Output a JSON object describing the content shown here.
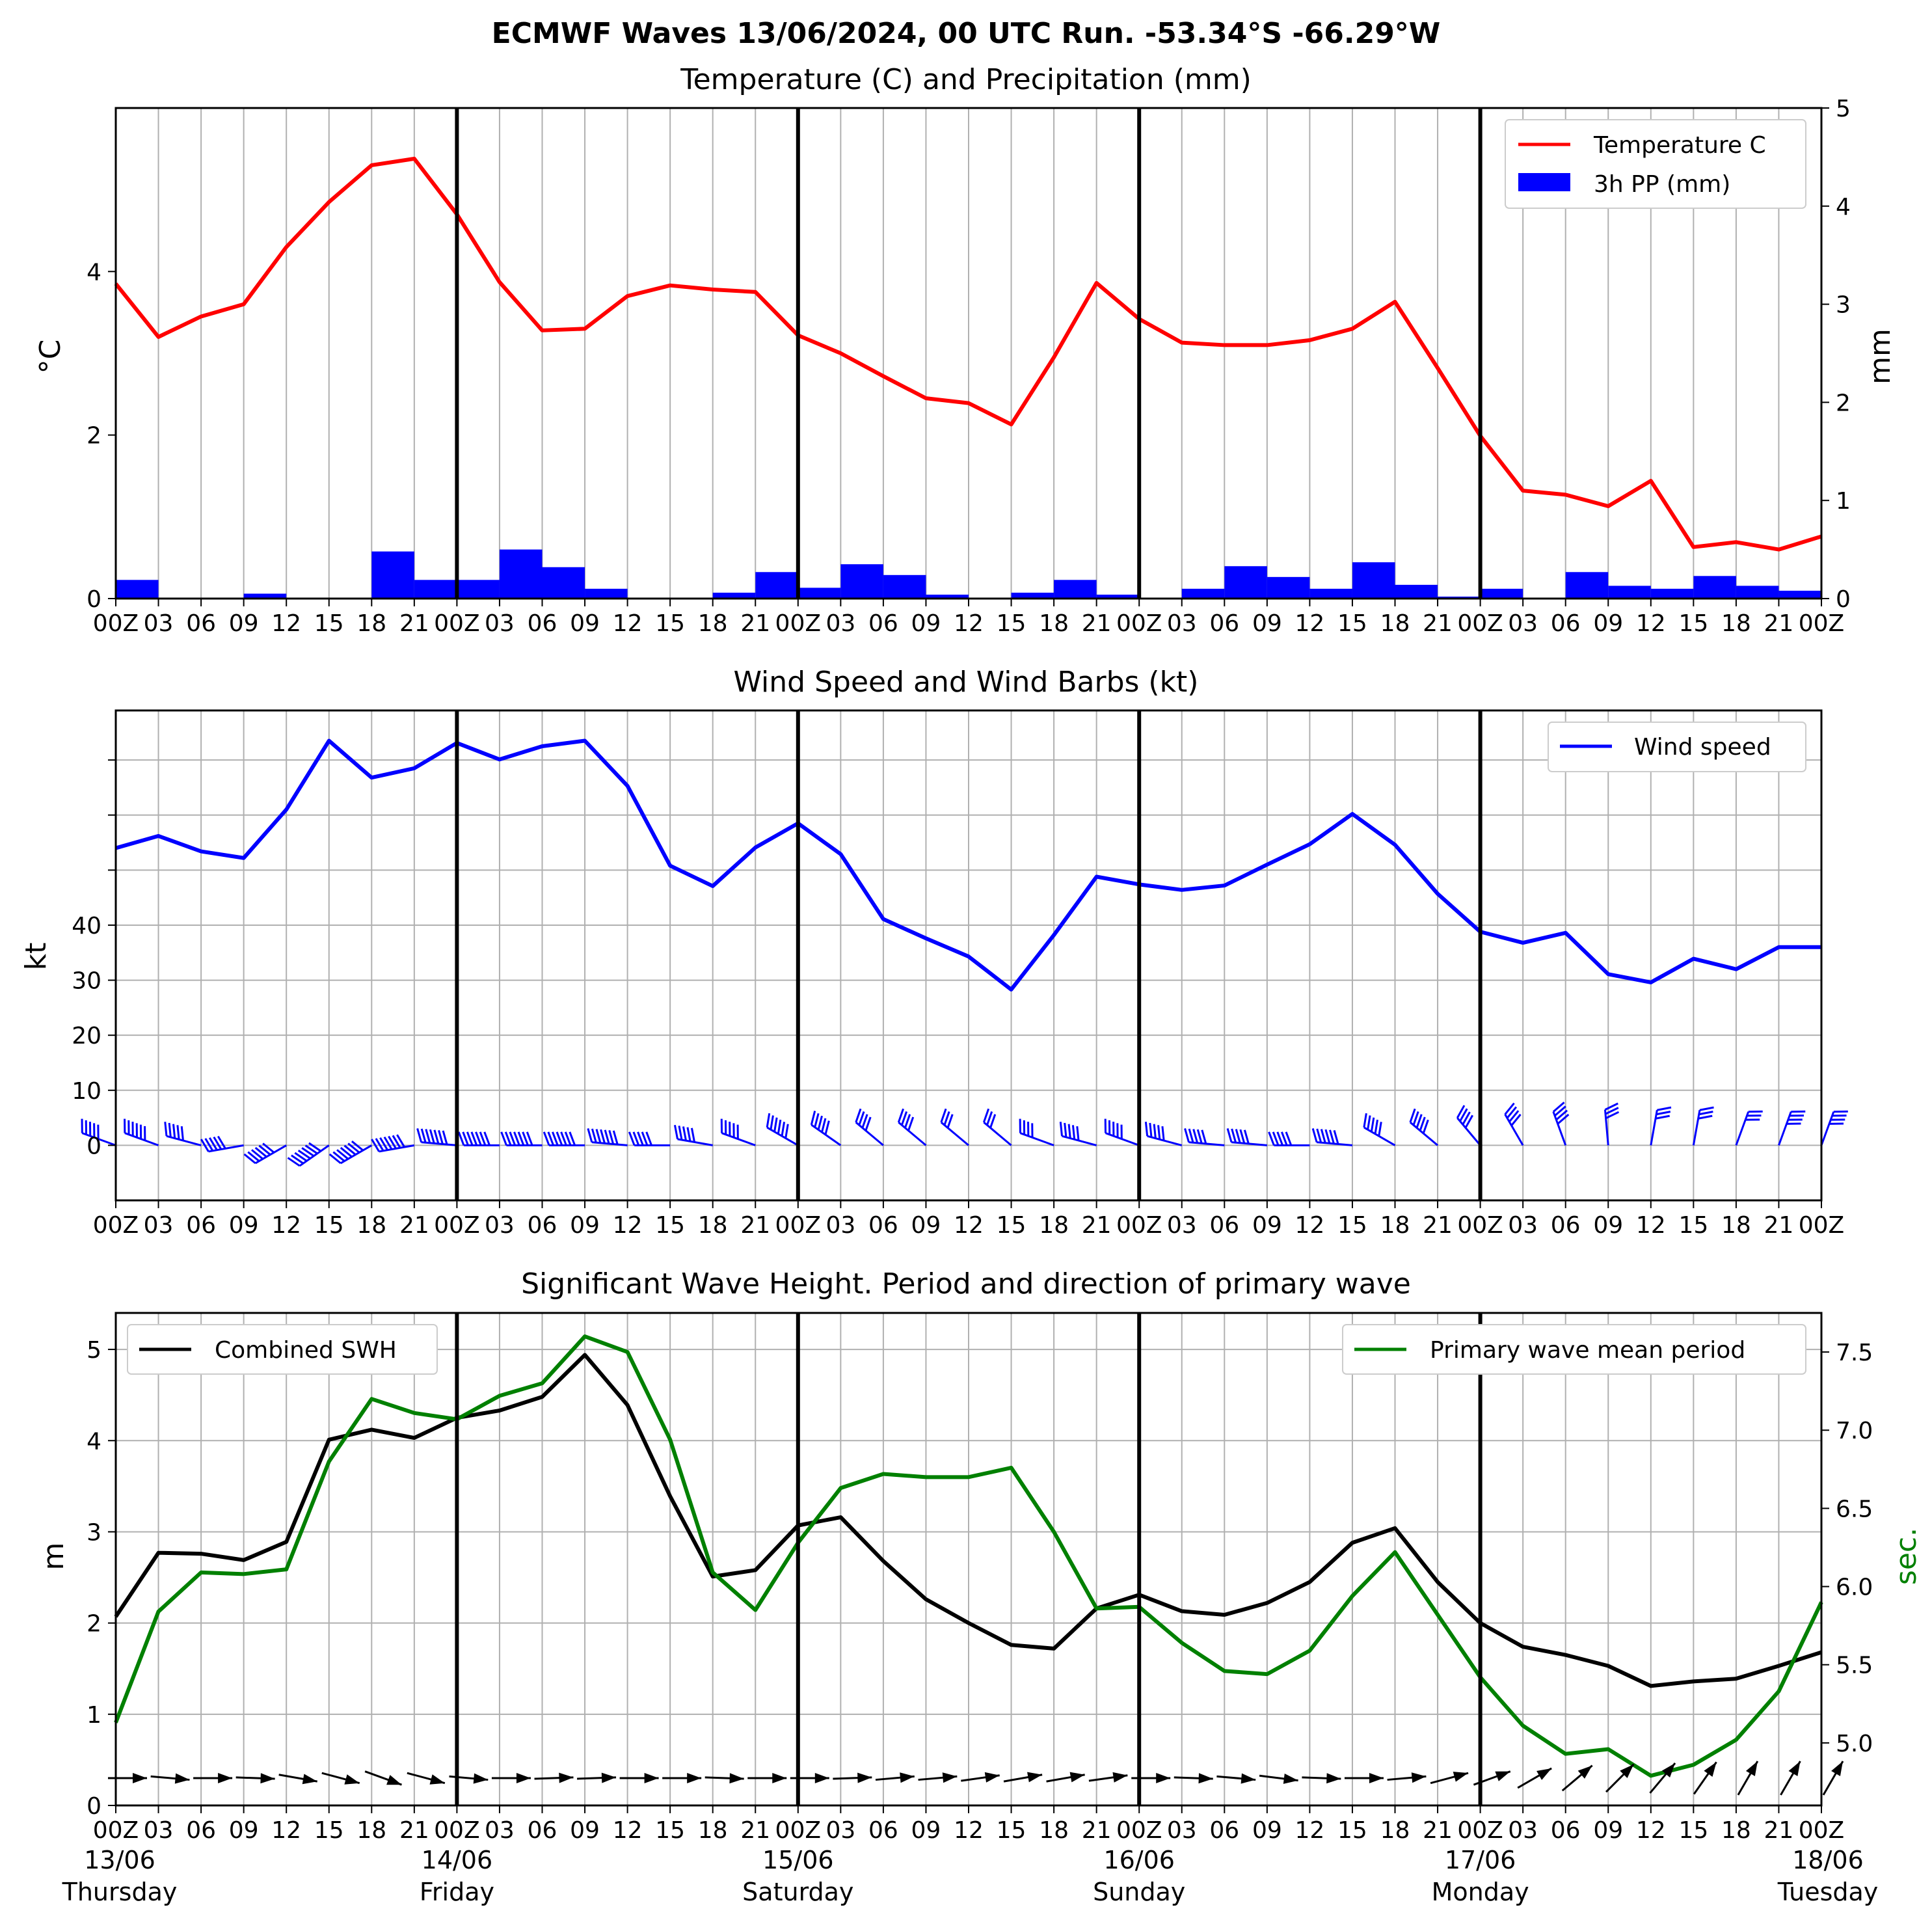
{
  "figure": {
    "title": "ECMWF Waves 13/06/2024, 00 UTC Run. -53.34°S -66.29°W",
    "x_tick_labels": [
      "00Z",
      "03",
      "06",
      "09",
      "12",
      "15",
      "18",
      "21",
      "00Z",
      "03",
      "06",
      "09",
      "12",
      "15",
      "18",
      "21",
      "00Z",
      "03",
      "06",
      "09",
      "12",
      "15",
      "18",
      "21",
      "00Z",
      "03",
      "06",
      "09",
      "12",
      "15",
      "18",
      "21",
      "00Z",
      "03",
      "06",
      "09",
      "12",
      "15",
      "18",
      "21",
      "00Z"
    ],
    "date_labels": [
      {
        "date": "13/06",
        "day": "Thursday"
      },
      {
        "date": "14/06",
        "day": "Friday"
      },
      {
        "date": "15/06",
        "day": "Saturday"
      },
      {
        "date": "16/06",
        "day": "Sunday"
      },
      {
        "date": "17/06",
        "day": "Monday"
      },
      {
        "date": "18/06",
        "day": "Tuesday"
      }
    ]
  },
  "chart_data": [
    {
      "type": "line",
      "title": "Temperature (C) and Precipitation (mm)",
      "x_hours": [
        0,
        3,
        6,
        9,
        12,
        15,
        18,
        21,
        24,
        27,
        30,
        33,
        36,
        39,
        42,
        45,
        48,
        51,
        54,
        57,
        60,
        63,
        66,
        69,
        72,
        75,
        78,
        81,
        84,
        87,
        90,
        93,
        96,
        99,
        102,
        105,
        108,
        111,
        114,
        117,
        120
      ],
      "ylabel": "$^\\circ$C",
      "ylabel_right": "mm",
      "ylim": [
        0,
        6
      ],
      "ylim_right": [
        0,
        5
      ],
      "yticks": [
        0,
        2,
        4
      ],
      "yticks_right": [
        0,
        1,
        2,
        3,
        4,
        5
      ],
      "legend": "upper right",
      "series": [
        {
          "name": "Temperature C",
          "color": "#ff0000",
          "values": [
            3.85,
            3.2,
            3.45,
            3.6,
            4.3,
            4.85,
            5.3,
            5.38,
            4.7,
            3.87,
            3.28,
            3.3,
            3.7,
            3.83,
            3.78,
            3.75,
            3.22,
            3.0,
            2.72,
            2.45,
            2.39,
            2.13,
            2.95,
            3.86,
            3.42,
            3.13,
            3.1,
            3.1,
            3.16,
            3.3,
            3.63,
            2.82,
            1.99,
            1.32,
            1.27,
            1.13,
            1.44,
            0.63,
            0.69,
            0.6,
            0.76
          ]
        },
        {
          "name": "3h PP (mm)",
          "color": "#0000ff",
          "type": "bar",
          "values": [
            0.19,
            0.0,
            0.0,
            0.05,
            0.0,
            0.0,
            0.48,
            0.19,
            0.19,
            0.5,
            0.32,
            0.1,
            0.0,
            0.0,
            0.06,
            0.27,
            0.11,
            0.35,
            0.24,
            0.04,
            0.0,
            0.06,
            0.19,
            0.04,
            0.0,
            0.1,
            0.33,
            0.22,
            0.1,
            0.37,
            0.14,
            0.02,
            0.1,
            0.0,
            0.27,
            0.13,
            0.1,
            0.23,
            0.13,
            0.08
          ]
        }
      ]
    },
    {
      "type": "line",
      "title": "Wind Speed and Wind Barbs (kt)",
      "ylabel": "kt",
      "ylim": [
        -10,
        79
      ],
      "yticks": [
        0,
        10,
        20,
        30,
        40
      ],
      "legend": "upper right",
      "series": [
        {
          "name": "Wind speed",
          "color": "#0000ff",
          "values": [
            54,
            56.2,
            53.4,
            52.2,
            61,
            73.5,
            66.8,
            68.5,
            73.1,
            70.1,
            72.5,
            73.5,
            65.3,
            50.8,
            47.1,
            54.1,
            58.5,
            52.9,
            41.1,
            37.6,
            34.3,
            28.3,
            38.2,
            48.8,
            47.4,
            46.4,
            47.2,
            51,
            54.7,
            60.2,
            54.6,
            45.7,
            38.8,
            36.8,
            38.6,
            31.1,
            29.6,
            33.9,
            32,
            36,
            36
          ]
        },
        {
          "name": "wind barbs",
          "color": "#0000ff",
          "direction_deg_from": [
            290,
            290,
            285,
            260,
            240,
            235,
            240,
            260,
            275,
            270,
            270,
            270,
            275,
            270,
            280,
            290,
            300,
            305,
            310,
            310,
            310,
            310,
            290,
            285,
            290,
            285,
            275,
            275,
            270,
            275,
            300,
            310,
            320,
            330,
            340,
            355,
            10,
            10,
            20,
            20,
            20
          ]
        }
      ]
    },
    {
      "type": "line",
      "title": "Significant Wave Height. Period and direction of primary wave",
      "ylabel": "m",
      "ylabel_right": "sec.",
      "ylim": [
        0,
        5.4
      ],
      "ylim_right": [
        4.6,
        7.75
      ],
      "yticks": [
        0,
        1,
        2,
        3,
        4,
        5
      ],
      "yticks_right": [
        5.0,
        5.5,
        6.0,
        6.5,
        7.0,
        7.5
      ],
      "series": [
        {
          "name": "Combined SWH",
          "color": "#000000",
          "legend": "upper left",
          "values": [
            2.07,
            2.77,
            2.76,
            2.69,
            2.89,
            4.01,
            4.12,
            4.03,
            4.25,
            4.33,
            4.48,
            4.94,
            4.39,
            3.39,
            2.51,
            2.58,
            3.07,
            3.16,
            2.68,
            2.26,
            2.0,
            1.76,
            1.72,
            2.16,
            2.31,
            2.13,
            2.09,
            2.22,
            2.45,
            2.88,
            3.04,
            2.45,
            2.0,
            1.74,
            1.65,
            1.53,
            1.31,
            1.36,
            1.39,
            1.53,
            1.68
          ]
        },
        {
          "name": "Primary wave mean period",
          "color": "#008000",
          "legend": "upper right",
          "axis": "right",
          "values": [
            5.13,
            5.84,
            6.09,
            6.08,
            6.11,
            6.8,
            7.2,
            7.11,
            7.07,
            7.22,
            7.3,
            7.6,
            7.5,
            6.94,
            6.09,
            5.85,
            6.28,
            6.63,
            6.72,
            6.7,
            6.7,
            6.76,
            6.35,
            5.86,
            5.87,
            5.64,
            5.46,
            5.44,
            5.59,
            5.94,
            6.22,
            5.82,
            5.42,
            5.11,
            4.93,
            4.96,
            4.79,
            4.86,
            5.02,
            5.33,
            5.9
          ]
        },
        {
          "name": "primary wave direction",
          "color": "#000000",
          "direction_deg_to": [
            90,
            95,
            90,
            92,
            100,
            105,
            110,
            105,
            95,
            90,
            88,
            88,
            90,
            90,
            92,
            90,
            90,
            88,
            85,
            85,
            82,
            80,
            80,
            82,
            90,
            92,
            95,
            97,
            92,
            90,
            85,
            75,
            70,
            60,
            50,
            45,
            40,
            35,
            30,
            30,
            30
          ]
        }
      ]
    }
  ]
}
